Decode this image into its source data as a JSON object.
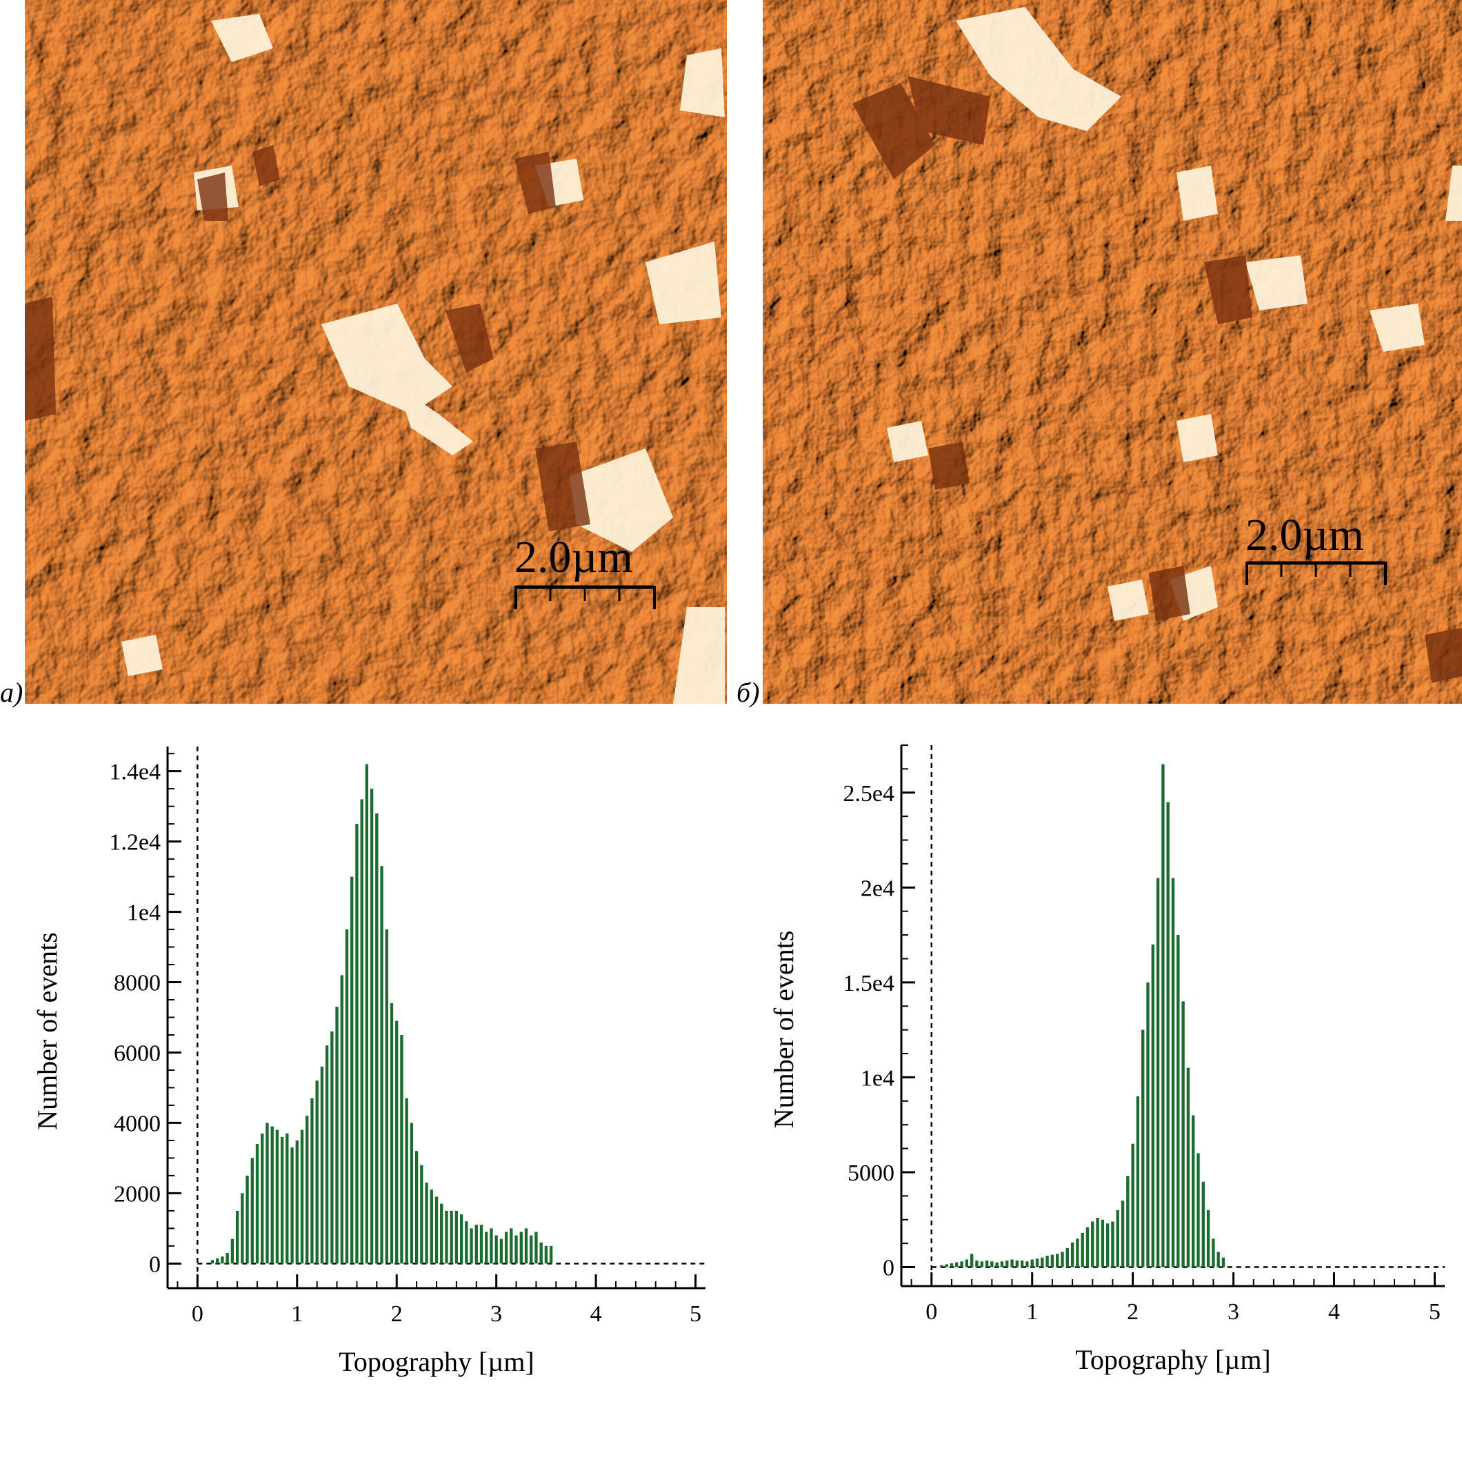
{
  "panels": [
    {
      "letter": "a)",
      "scalebar": {
        "label": "2.0µm"
      }
    },
    {
      "letter": "б)",
      "scalebar": {
        "label": "2.0µm"
      }
    }
  ],
  "colors": {
    "afm_base": "#e08a3a",
    "afm_light": "#fff2d6",
    "afm_dark": "#8a3a10",
    "bars": "#1b6b2e"
  },
  "chart_data": [
    {
      "type": "bar",
      "xlabel": "Topography [µm]",
      "ylabel": "Number of events",
      "xlim": [
        -0.3,
        5.1
      ],
      "ylim": [
        -700,
        14700
      ],
      "xticks": [
        0,
        1,
        2,
        3,
        4,
        5
      ],
      "xticklabels": [
        "0",
        "1",
        "2",
        "3",
        "4",
        "5"
      ],
      "yticks": [
        0,
        2000,
        4000,
        6000,
        8000,
        10000,
        12000,
        14000
      ],
      "yticklabels": [
        "0",
        "2000",
        "4000",
        "6000",
        "8000",
        "1e4",
        "1.2e4",
        "1.4e4"
      ],
      "bin_width": 0.05,
      "x": [
        0.15,
        0.2,
        0.25,
        0.3,
        0.35,
        0.4,
        0.45,
        0.5,
        0.55,
        0.6,
        0.65,
        0.7,
        0.75,
        0.8,
        0.85,
        0.9,
        0.95,
        1.0,
        1.05,
        1.1,
        1.15,
        1.2,
        1.25,
        1.3,
        1.35,
        1.4,
        1.45,
        1.5,
        1.55,
        1.6,
        1.65,
        1.7,
        1.75,
        1.8,
        1.85,
        1.9,
        1.95,
        2.0,
        2.05,
        2.1,
        2.15,
        2.2,
        2.25,
        2.3,
        2.35,
        2.4,
        2.45,
        2.5,
        2.55,
        2.6,
        2.65,
        2.7,
        2.75,
        2.8,
        2.85,
        2.9,
        2.95,
        3.0,
        3.05,
        3.1,
        3.15,
        3.2,
        3.25,
        3.3,
        3.35,
        3.4,
        3.45,
        3.5,
        3.55
      ],
      "values": [
        100,
        150,
        200,
        300,
        700,
        1500,
        2000,
        2500,
        3000,
        3400,
        3700,
        4000,
        3900,
        3800,
        3600,
        3700,
        3300,
        3500,
        3800,
        4200,
        4700,
        5200,
        5600,
        6200,
        6600,
        7300,
        8200,
        9500,
        11000,
        12500,
        13200,
        14200,
        13500,
        12800,
        11300,
        9500,
        7400,
        6900,
        6500,
        4700,
        4000,
        3200,
        2800,
        2300,
        2100,
        1900,
        1700,
        1500,
        1500,
        1500,
        1400,
        1200,
        1000,
        1100,
        1100,
        900,
        1000,
        800,
        700,
        900,
        1000,
        800,
        900,
        1000,
        800,
        900,
        600,
        500,
        500
      ]
    },
    {
      "type": "bar",
      "xlabel": "Topography [µm]",
      "ylabel": "Number of events",
      "xlim": [
        -0.3,
        5.1
      ],
      "ylim": [
        -1000,
        27500
      ],
      "xticks": [
        0,
        1,
        2,
        3,
        4,
        5
      ],
      "xticklabels": [
        "0",
        "1",
        "2",
        "3",
        "4",
        "5"
      ],
      "yticks": [
        0,
        5000,
        10000,
        15000,
        20000,
        25000
      ],
      "yticklabels": [
        "0",
        "5000",
        "1e4",
        "1.5e4",
        "2e4",
        "2.5e4"
      ],
      "bin_width": 0.05,
      "x": [
        0.1,
        0.15,
        0.2,
        0.25,
        0.3,
        0.35,
        0.4,
        0.45,
        0.5,
        0.55,
        0.6,
        0.65,
        0.7,
        0.75,
        0.8,
        0.85,
        0.9,
        0.95,
        1.0,
        1.05,
        1.1,
        1.15,
        1.2,
        1.25,
        1.3,
        1.35,
        1.4,
        1.45,
        1.5,
        1.55,
        1.6,
        1.65,
        1.7,
        1.75,
        1.8,
        1.85,
        1.9,
        1.95,
        2.0,
        2.05,
        2.1,
        2.15,
        2.2,
        2.25,
        2.3,
        2.35,
        2.4,
        2.45,
        2.5,
        2.55,
        2.6,
        2.65,
        2.7,
        2.75,
        2.8,
        2.85,
        2.9
      ],
      "values": [
        100,
        150,
        200,
        250,
        300,
        400,
        700,
        350,
        300,
        350,
        300,
        250,
        300,
        350,
        400,
        350,
        350,
        300,
        400,
        450,
        500,
        600,
        650,
        700,
        800,
        1000,
        1300,
        1500,
        1800,
        2100,
        2400,
        2600,
        2500,
        2300,
        2400,
        3000,
        3500,
        4800,
        6500,
        9000,
        12500,
        15000,
        17000,
        20500,
        26500,
        24500,
        20500,
        17500,
        14000,
        10500,
        8000,
        6000,
        4500,
        3000,
        1500,
        800,
        500
      ]
    }
  ]
}
